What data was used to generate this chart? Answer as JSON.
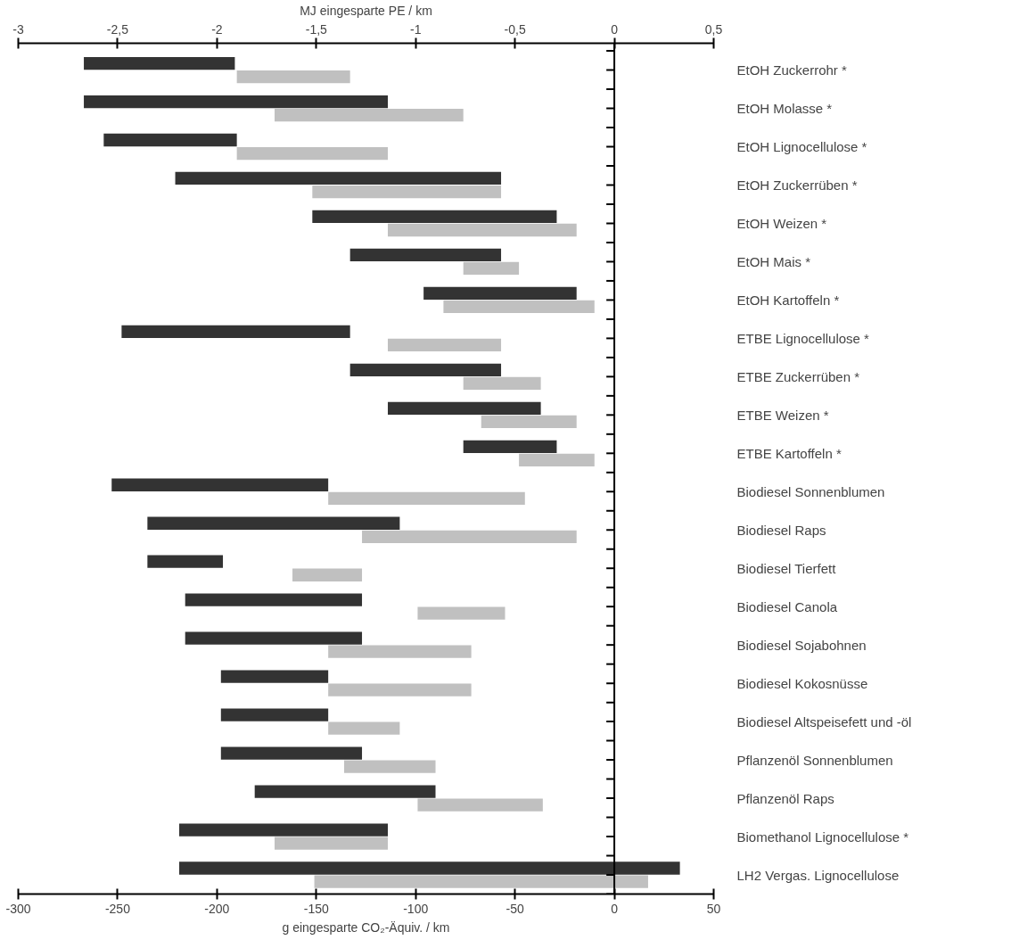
{
  "chart_data": {
    "type": "bar",
    "orientation": "horizontal",
    "xlabel": "g eingesparte CO₂-Äquiv. / km",
    "x2label": "MJ eingesparte PE / km",
    "categories": [
      "EtOH Zuckerrohr *",
      "EtOH Molasse *",
      "EtOH Lignocellulose *",
      "EtOH Zuckerrüben *",
      "EtOH Weizen *",
      "EtOH Mais *",
      "EtOH Kartoffeln *",
      "ETBE Lignocellulose *",
      "ETBE Zuckerrüben *",
      "ETBE Weizen *",
      "ETBE Kartoffeln *",
      "Biodiesel Sonnenblumen",
      "Biodiesel Raps",
      "Biodiesel Tierfett",
      "Biodiesel Canola",
      "Biodiesel Sojabohnen",
      "Biodiesel Kokosnüsse",
      "Biodiesel Altspeisefett und -öl",
      "Pflanzenöl Sonnenblumen",
      "Pflanzenöl Raps",
      "Biomethanol Lignocellulose *",
      "LH2 Vergas. Lignocellulose"
    ],
    "series": [
      {
        "color": "#333333",
        "axis": "x2",
        "base": [
          -2.67,
          -2.67,
          -2.57,
          -2.21,
          -1.52,
          -1.33,
          -0.96,
          -2.48,
          -1.33,
          -1.14,
          -0.76,
          -2.53,
          -2.35,
          -2.35,
          -2.16,
          -2.16,
          -1.98,
          -1.98,
          -1.98,
          -1.81,
          -2.19,
          -2.19
        ],
        "values": [
          0.76,
          1.53,
          0.67,
          1.64,
          1.23,
          0.76,
          0.77,
          1.15,
          0.76,
          0.77,
          0.47,
          1.09,
          1.27,
          0.38,
          0.89,
          0.89,
          0.54,
          0.54,
          0.71,
          0.91,
          1.05,
          2.52
        ]
      },
      {
        "color": "#c0c0c0",
        "base": [
          -190,
          -171,
          -190,
          -152,
          -114,
          -76,
          -86,
          -114,
          -76,
          -67,
          -48,
          -144,
          -127,
          -162,
          -99,
          -144,
          -144,
          -144,
          -136,
          -99,
          -171,
          -151
        ],
        "values": [
          57,
          95,
          76,
          95,
          95,
          28,
          76,
          57,
          39,
          48,
          38,
          99,
          108,
          35,
          44,
          72,
          72,
          36,
          46,
          63,
          57,
          168
        ]
      }
    ],
    "xlim": [
      -300,
      50
    ],
    "xticks": [
      -300,
      -250,
      -200,
      -150,
      -100,
      -50,
      0,
      50
    ],
    "x2lim": [
      -3,
      0.5
    ],
    "x2ticks": [
      -3,
      {
        "value": -2.5,
        "label": "-2,5"
      },
      -2,
      {
        "value": -1.5,
        "label": "-1,5"
      },
      -1,
      {
        "value": -0.5,
        "label": "-0,5"
      },
      0,
      {
        "value": 0.5,
        "label": "0,5"
      }
    ],
    "ref_lines": [
      {
        "axis": "x",
        "value": 0,
        "color": "#000000"
      }
    ]
  }
}
